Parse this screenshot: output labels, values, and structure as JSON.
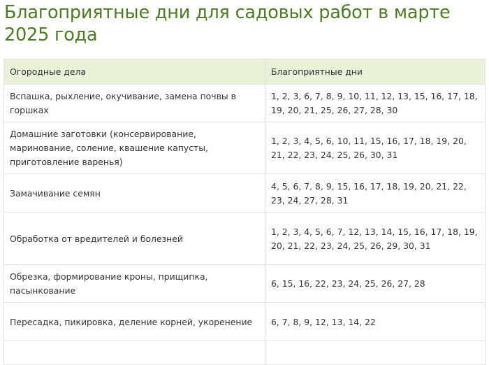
{
  "title": "Благоприятные дни для садовых работ в марте 2025 года",
  "table": {
    "headers": [
      "Огородные дела",
      "Благоприятные дни"
    ],
    "rows": [
      {
        "task": "Вспашка, рыхление, окучивание, замена почвы в горшках",
        "days": "1, 2, 3, 6, 7, 8, 9, 10, 11, 12, 13, 15, 16, 17, 18, 19, 20, 21, 25, 26, 27, 28, 30"
      },
      {
        "task": "Домашние заготовки (консервирование, маринование, соление, квашение капусты, приготовление варенья)",
        "days": "1, 2, 3, 4, 5, 6, 10, 11, 15, 16, 17, 18, 19, 20, 21, 22, 23, 24, 25, 26, 30, 31"
      },
      {
        "task": "Замачивание семян",
        "days": "4, 5, 6, 7, 8, 9, 15, 16, 17, 18, 19, 20, 21, 22, 23, 24, 27, 28, 31"
      },
      {
        "task": "Обработка от вредителей и болезней",
        "days": "1, 2, 3, 4, 5, 6, 7, 12, 13, 14, 15, 16, 17, 18, 19, 20, 21, 22, 23, 24, 25, 26, 29, 30, 31"
      },
      {
        "task": "Обрезка, формирование кроны, прищипка, пасынкование",
        "days": "6, 15, 16, 22, 23, 24, 25, 26, 27, 28"
      },
      {
        "task": "Пересадка, пикировка, деление корней, укоренение",
        "days": "6, 7, 8, 9, 12, 13, 14, 22"
      }
    ]
  },
  "colors": {
    "title": "#4d7a24",
    "header_bg": "#e9f1d9",
    "border": "#e2e2e2"
  }
}
